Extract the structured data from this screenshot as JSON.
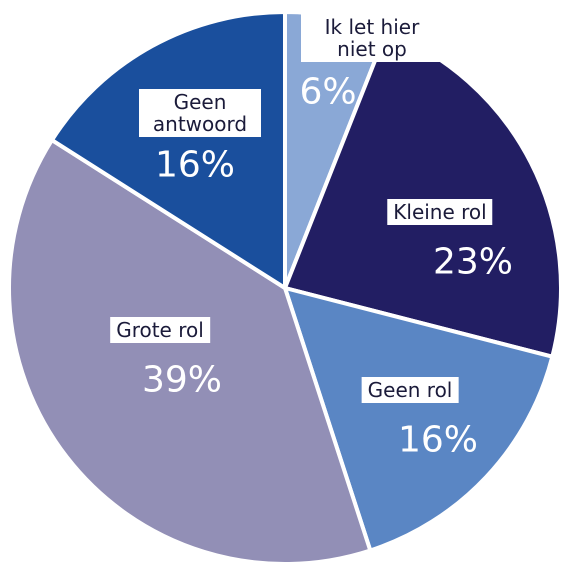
{
  "chart_data": {
    "type": "pie",
    "categories": [
      "Ik let hier niet op",
      "Kleine rol",
      "Geen rol",
      "Grote rol",
      "Geen antwoord"
    ],
    "values": [
      6,
      23,
      16,
      39,
      16
    ],
    "value_labels": [
      "6%",
      "23%",
      "16%",
      "39%",
      "16%"
    ],
    "colors": [
      "#8aa8d6",
      "#221e63",
      "#5a86c4",
      "#928fb6",
      "#1a4f9d"
    ]
  }
}
